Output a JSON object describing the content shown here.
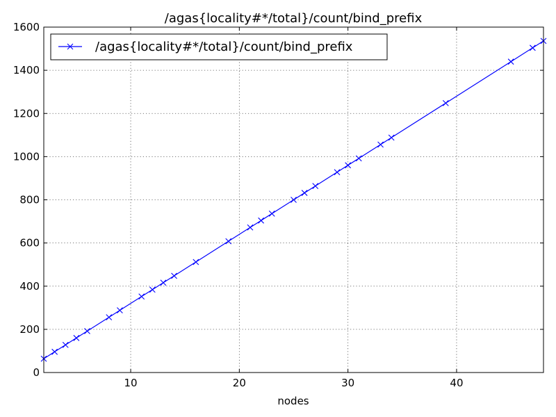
{
  "chart_data": {
    "type": "line",
    "title": "/agas{locality#*/total}/count/bind_prefix",
    "xlabel": "nodes",
    "ylabel": "",
    "xlim": [
      2,
      48
    ],
    "ylim": [
      0,
      1600
    ],
    "xticks": [
      10,
      20,
      30,
      40
    ],
    "yticks": [
      0,
      200,
      400,
      600,
      800,
      1000,
      1200,
      1400,
      1600
    ],
    "grid": true,
    "legend_position": "top-left",
    "series": [
      {
        "name": "/agas{locality#*/total}/count/bind_prefix",
        "color": "#0000ff",
        "marker": "x",
        "x": [
          2,
          3,
          4,
          5,
          6,
          8,
          9,
          11,
          12,
          13,
          14,
          16,
          19,
          21,
          22,
          23,
          25,
          26,
          27,
          29,
          30,
          31,
          33,
          34,
          39,
          45,
          47,
          48
        ],
        "y": [
          64,
          96,
          128,
          160,
          192,
          256,
          288,
          352,
          384,
          416,
          448,
          512,
          608,
          672,
          704,
          736,
          800,
          832,
          864,
          928,
          960,
          992,
          1056,
          1088,
          1248,
          1440,
          1504,
          1536
        ]
      }
    ]
  }
}
